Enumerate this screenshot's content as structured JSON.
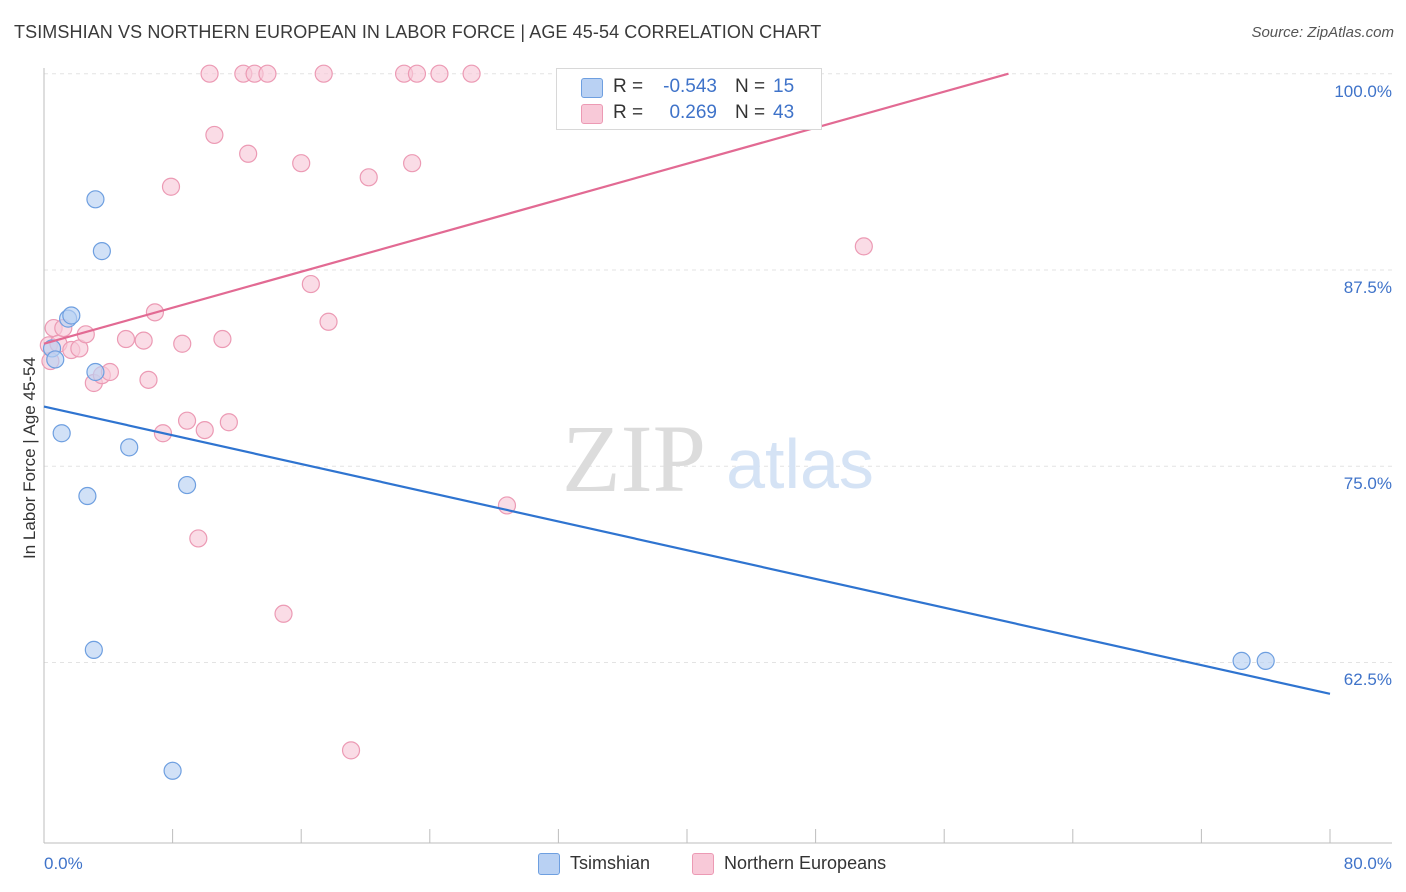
{
  "header": {
    "title": "TSIMSHIAN VS NORTHERN EUROPEAN IN LABOR FORCE | AGE 45-54 CORRELATION CHART",
    "source": "Source: ZipAtlas.com"
  },
  "watermark": {
    "zip": "ZIP",
    "atlas": "atlas"
  },
  "legend_top": {
    "rows": [
      {
        "r_label": "R =",
        "r_value": "-0.543",
        "n_label": "N =",
        "n_value": "15"
      },
      {
        "r_label": "R =",
        "r_value": "0.269",
        "n_label": "N =",
        "n_value": "43"
      }
    ]
  },
  "colors": {
    "tsimshian_fill": "#b9d1f3",
    "tsimshian_stroke": "#6e9fe0",
    "tsimshian_line": "#2f74d0",
    "northern_fill": "#f8c9d8",
    "northern_stroke": "#ec9ab4",
    "northern_line": "#e26a93",
    "tick_text": "#3f73c9",
    "grid": "#e3e3e3"
  },
  "chart_data": {
    "type": "scatter",
    "title": "TSIMSHIAN VS NORTHERN EUROPEAN IN LABOR FORCE | AGE 45-54 CORRELATION CHART",
    "xlabel": "",
    "ylabel": "In Labor Force | Age 45-54",
    "x_range": [
      0,
      80
    ],
    "y_range": [
      51,
      101
    ],
    "x_tick_labels": [
      "0.0%",
      "80.0%"
    ],
    "y_ticks": [
      62.5,
      75.0,
      87.5,
      100.0
    ],
    "y_tick_labels": [
      "62.5%",
      "75.0%",
      "87.5%",
      "100.0%"
    ],
    "grid": true,
    "legend_position": "bottom",
    "series": [
      {
        "name": "Tsimshian",
        "r": -0.543,
        "n": 15,
        "points": [
          [
            0.5,
            82.5
          ],
          [
            0.7,
            81.8
          ],
          [
            1.5,
            84.4
          ],
          [
            1.7,
            84.6
          ],
          [
            1.1,
            77.1
          ],
          [
            3.2,
            92.0
          ],
          [
            3.6,
            88.7
          ],
          [
            3.2,
            81.0
          ],
          [
            5.3,
            76.2
          ],
          [
            2.7,
            73.1
          ],
          [
            8.9,
            73.8
          ],
          [
            3.1,
            63.3
          ],
          [
            8.0,
            55.6
          ],
          [
            74.5,
            62.6
          ],
          [
            76.0,
            62.6
          ]
        ],
        "trend": {
          "x": [
            0,
            80
          ],
          "y": [
            78.8,
            60.5
          ]
        }
      },
      {
        "name": "Northern Europeans",
        "r": 0.269,
        "n": 43,
        "points": [
          [
            0.3,
            82.7
          ],
          [
            0.4,
            81.7
          ],
          [
            0.6,
            83.8
          ],
          [
            0.9,
            82.8
          ],
          [
            1.2,
            83.8
          ],
          [
            1.7,
            82.4
          ],
          [
            2.2,
            82.5
          ],
          [
            2.6,
            83.4
          ],
          [
            3.1,
            80.3
          ],
          [
            3.6,
            80.8
          ],
          [
            4.1,
            81.0
          ],
          [
            5.1,
            83.1
          ],
          [
            6.2,
            83.0
          ],
          [
            6.5,
            80.5
          ],
          [
            6.9,
            84.8
          ],
          [
            7.4,
            77.1
          ],
          [
            7.9,
            92.8
          ],
          [
            8.6,
            82.8
          ],
          [
            8.9,
            77.9
          ],
          [
            9.6,
            70.4
          ],
          [
            10.0,
            77.3
          ],
          [
            10.3,
            100.0
          ],
          [
            10.6,
            96.1
          ],
          [
            11.1,
            83.1
          ],
          [
            11.5,
            77.8
          ],
          [
            12.4,
            100.0
          ],
          [
            12.7,
            94.9
          ],
          [
            13.1,
            100.0
          ],
          [
            13.9,
            100.0
          ],
          [
            14.9,
            65.6
          ],
          [
            16.0,
            94.3
          ],
          [
            16.6,
            86.6
          ],
          [
            17.4,
            100.0
          ],
          [
            17.7,
            84.2
          ],
          [
            19.1,
            56.9
          ],
          [
            20.2,
            93.4
          ],
          [
            22.4,
            100.0
          ],
          [
            22.9,
            94.3
          ],
          [
            23.2,
            100.0
          ],
          [
            24.6,
            100.0
          ],
          [
            26.6,
            100.0
          ],
          [
            28.8,
            72.5
          ],
          [
            51.0,
            89.0
          ]
        ],
        "trend": {
          "x": [
            0,
            60
          ],
          "y": [
            82.8,
            100.0
          ]
        }
      }
    ]
  },
  "bottom_legend": {
    "items": [
      {
        "label": "Tsimshian"
      },
      {
        "label": "Northern Europeans"
      }
    ]
  }
}
